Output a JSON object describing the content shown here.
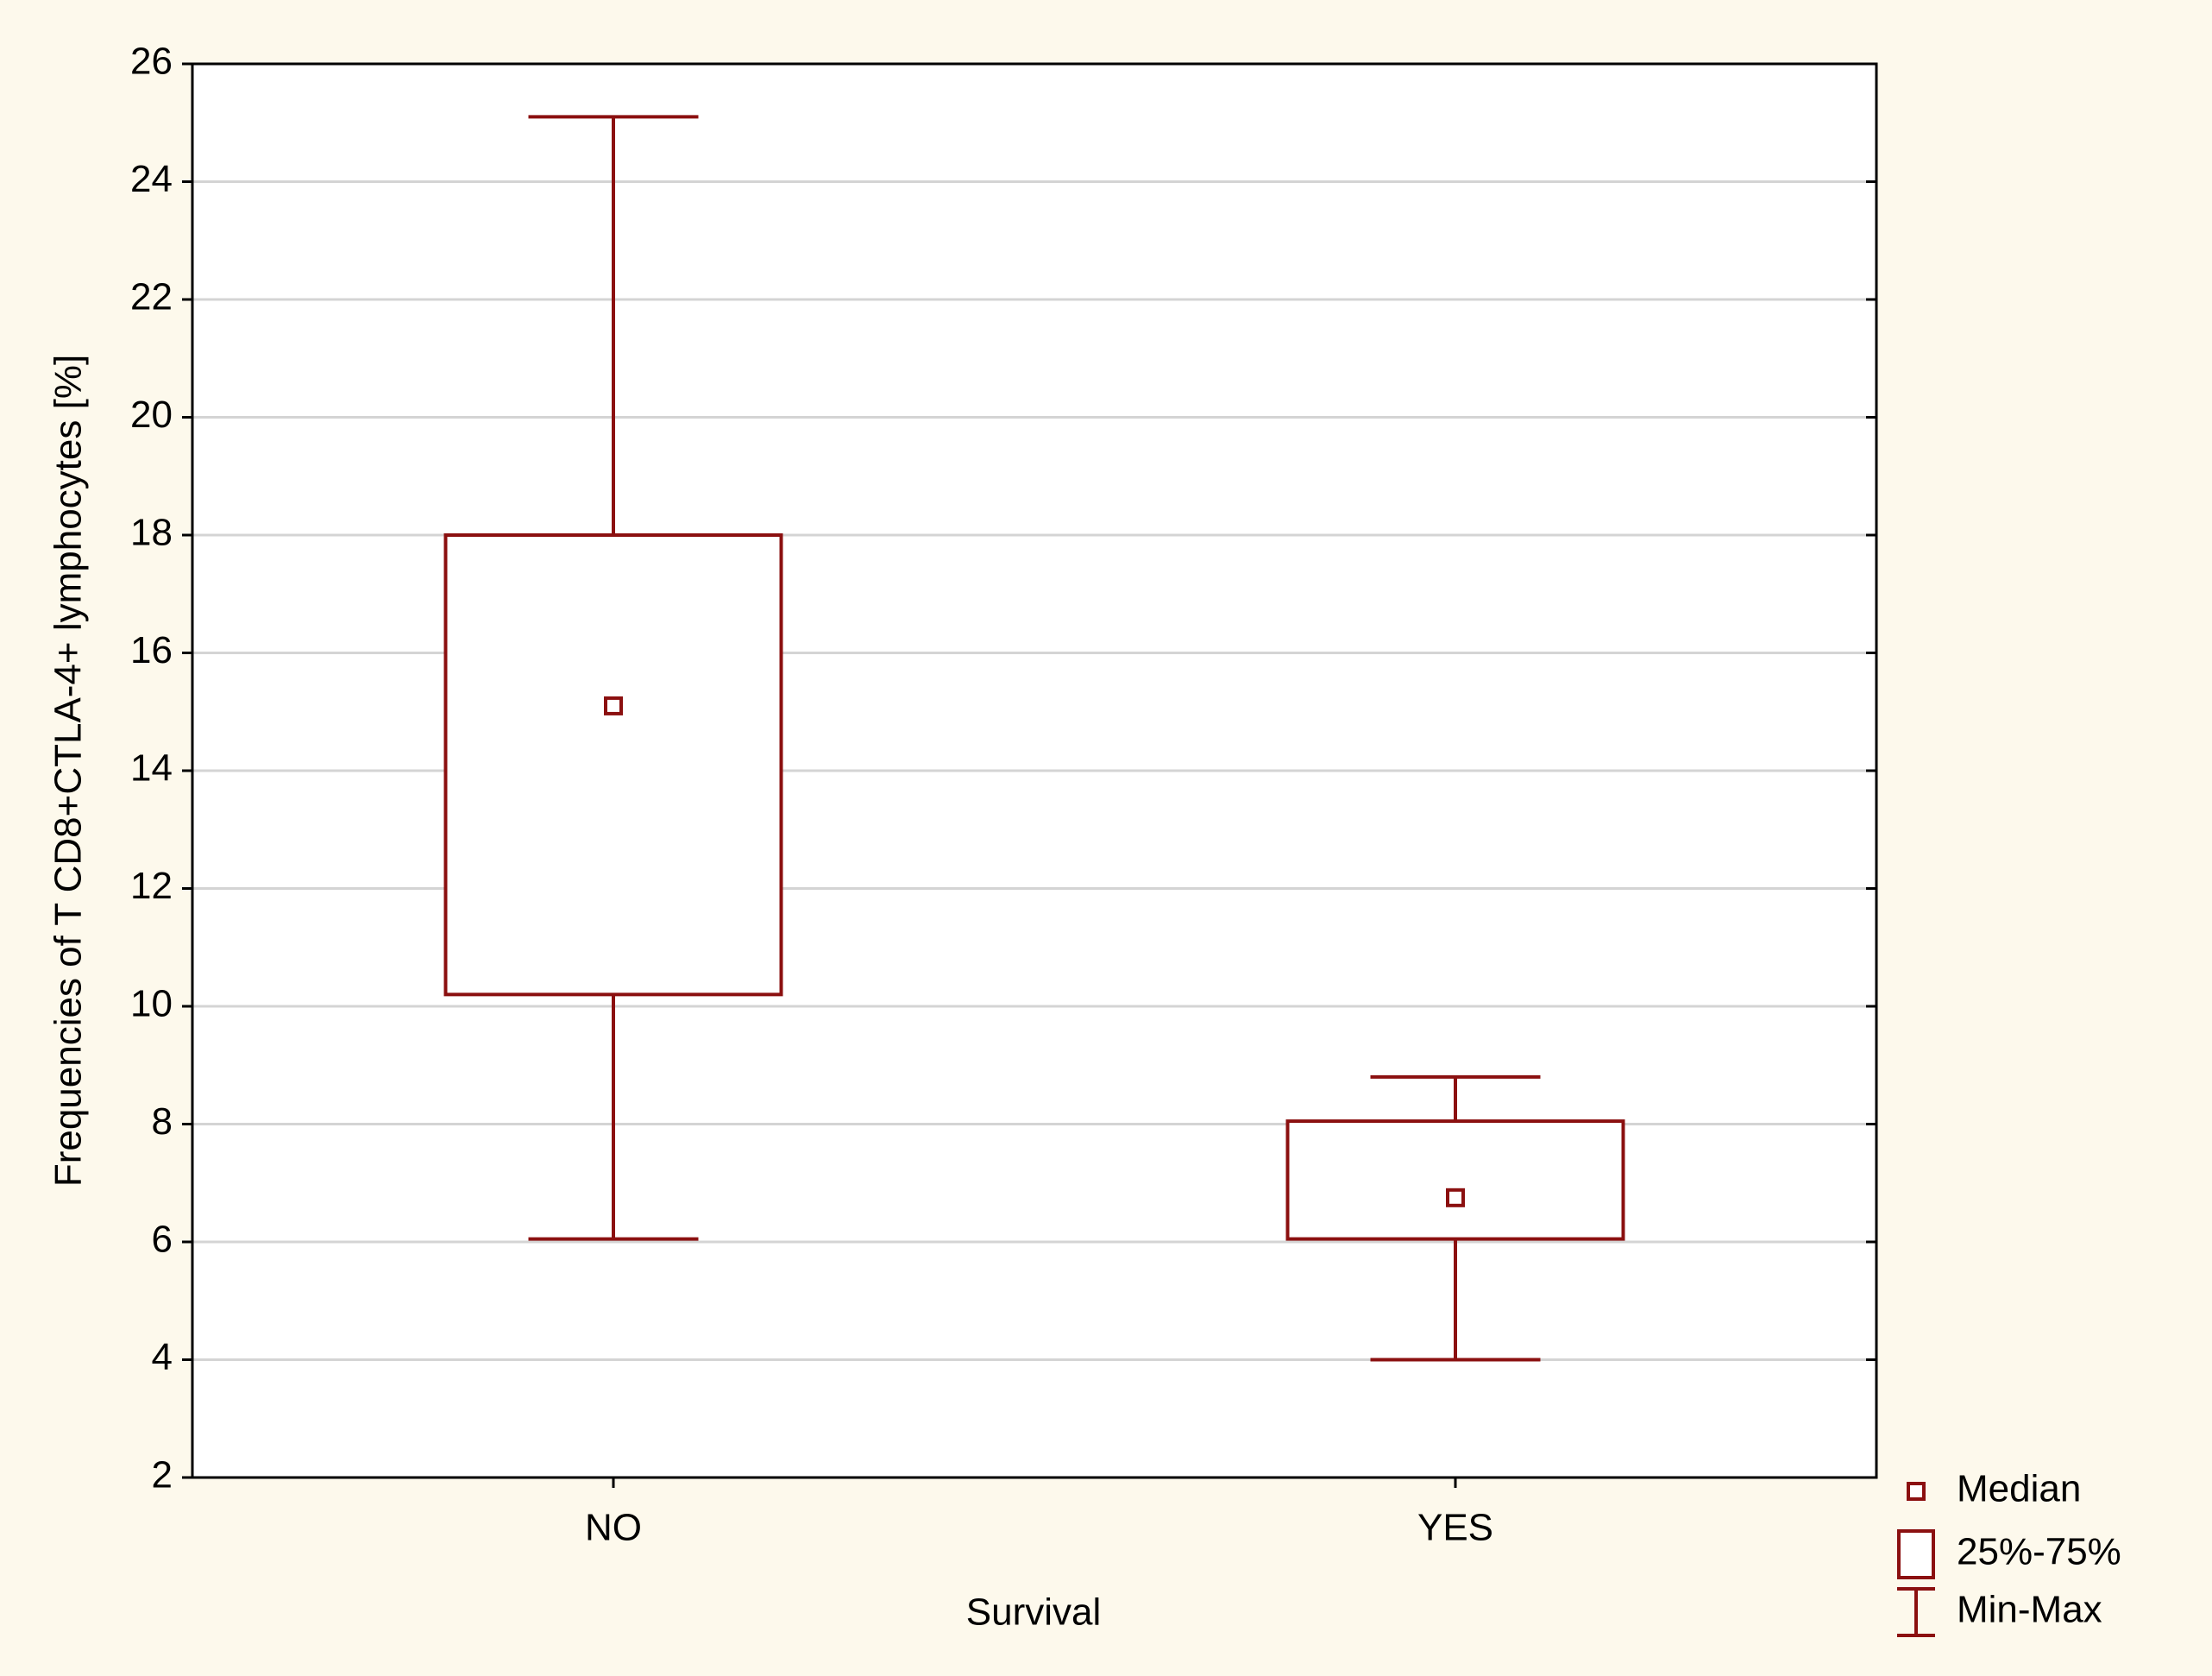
{
  "chart_data": {
    "type": "box",
    "y_label": "Frequencies of T CD8+CTLA-4+ lymphocytes [%]",
    "x_label": "Survival",
    "categories": [
      "NO",
      "YES"
    ],
    "boxes": [
      {
        "min": 6.05,
        "q1": 10.2,
        "median": 15.1,
        "q3": 18.0,
        "max": 25.1
      },
      {
        "min": 4.0,
        "q1": 6.05,
        "median": 6.75,
        "q3": 8.05,
        "max": 8.8
      }
    ],
    "color": "#8b1010",
    "legend": [
      "Median",
      "25%-75%",
      "Min-Max"
    ],
    "ylim": [
      2,
      26
    ],
    "yticks": [
      2,
      4,
      6,
      8,
      10,
      12,
      14,
      16,
      18,
      20,
      22,
      24,
      26
    ],
    "grid": true
  }
}
